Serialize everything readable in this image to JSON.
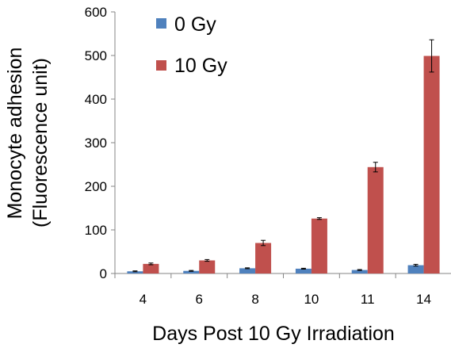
{
  "chart_data": {
    "type": "bar",
    "categories": [
      "4",
      "6",
      "8",
      "10",
      "11",
      "14"
    ],
    "series": [
      {
        "name": "0 Gy",
        "color": "#4f81bd",
        "values": [
          5,
          6,
          12,
          11,
          8,
          19
        ],
        "errors": [
          1,
          1,
          1,
          1,
          1,
          2
        ]
      },
      {
        "name": "10 Gy",
        "color": "#c0504d",
        "values": [
          22,
          30,
          70,
          126,
          244,
          499
        ],
        "errors": [
          2,
          2,
          6,
          2,
          11,
          37
        ]
      }
    ],
    "xlabel": "Days Post 10 Gy Irradiation",
    "ylabel_line1": "Monocyte adhesion",
    "ylabel_line2": "(Fluorescence unit)",
    "ylim": [
      0,
      600
    ],
    "yticks": [
      "0",
      "100",
      "200",
      "300",
      "400",
      "500",
      "600"
    ],
    "grid": false,
    "legend_position": "top-left"
  }
}
